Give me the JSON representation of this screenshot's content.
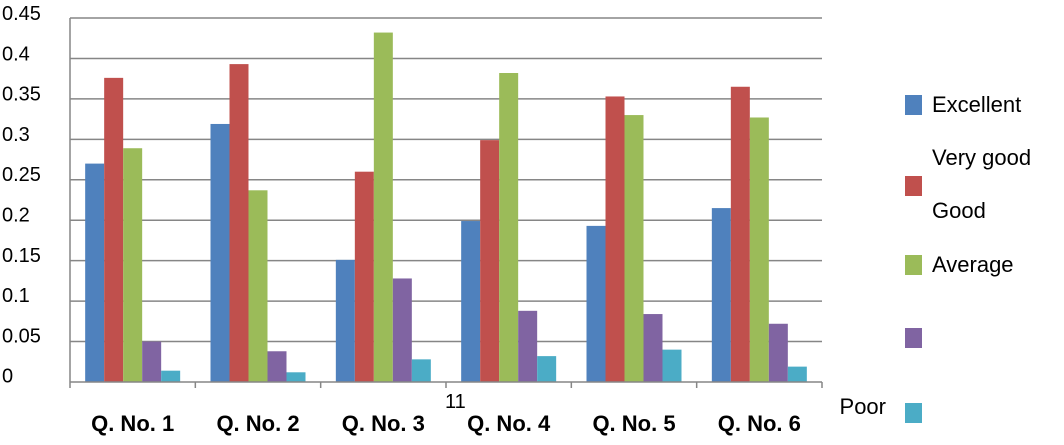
{
  "chart_data": {
    "type": "bar",
    "title": "",
    "xlabel": "",
    "ylabel": "",
    "ylim": [
      0,
      0.45
    ],
    "grid": true,
    "legend_position": "right",
    "y_tick_labels": [
      "0.45",
      "0.4",
      "0.35",
      "0.3",
      "0.25",
      "0.2",
      "0.15",
      "0.1",
      "0.05",
      "0"
    ],
    "stray_label": "11",
    "categories": [
      "Q. No. 1",
      "Q. No. 2",
      "Q. No. 3",
      "Q. No. 4",
      "Q. No. 5",
      "Q. No. 6"
    ],
    "legend_labels": [
      "Excellent",
      "Very good",
      "Good",
      "Average",
      "",
      "Poor"
    ],
    "series": [
      {
        "color": "#4f81bd",
        "values": [
          0.27,
          0.319,
          0.151,
          0.199,
          0.193,
          0.215
        ]
      },
      {
        "color": "#c0504d",
        "values": [
          0.376,
          0.393,
          0.26,
          0.299,
          0.353,
          0.365
        ]
      },
      {
        "color": "#9bbb59",
        "values": [
          0.289,
          0.237,
          0.432,
          0.382,
          0.33,
          0.327
        ]
      },
      {
        "color": "#8064a2",
        "values": [
          0.05,
          0.038,
          0.128,
          0.088,
          0.084,
          0.072
        ]
      },
      {
        "color": "#4bacc6",
        "values": [
          0.014,
          0.012,
          0.028,
          0.032,
          0.04,
          0.019
        ]
      }
    ]
  }
}
